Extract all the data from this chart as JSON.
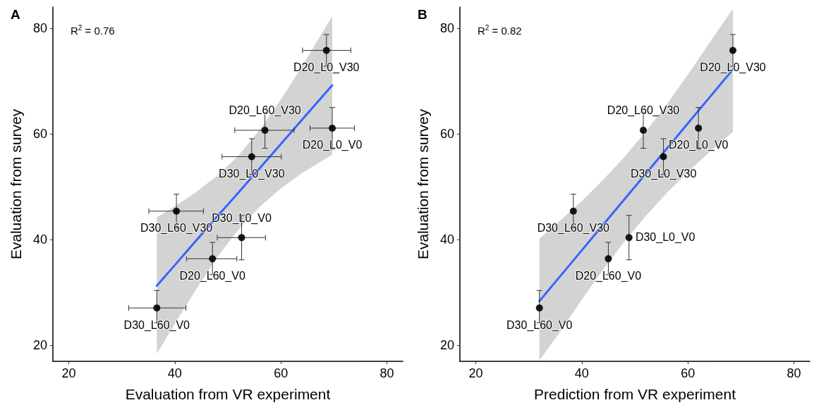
{
  "chart_data": [
    {
      "type": "scatter",
      "title": "A",
      "xlabel": "Evaluation from VR experiment",
      "ylabel": "Evaluation from survey",
      "xlim": [
        17,
        83
      ],
      "ylim": [
        17,
        84
      ],
      "xticks": [
        20,
        40,
        60,
        80
      ],
      "yticks": [
        20,
        40,
        60,
        80
      ],
      "grid": false,
      "series": [
        {
          "type": "line",
          "color": "#3366ff",
          "marker": "none",
          "line_style": "solid",
          "x": [
            36.6,
            40,
            44,
            48,
            52,
            56,
            60,
            64,
            69.7
          ],
          "values": [
            31.3,
            35.2,
            39.8,
            44.4,
            48.9,
            53.5,
            58.1,
            62.7,
            69.2
          ],
          "lower": [
            18.4,
            24.1,
            30.6,
            36.7,
            41.9,
            46.2,
            49.7,
            52.6,
            56.1
          ],
          "upper": [
            44.2,
            46.3,
            49.0,
            52.1,
            55.9,
            60.8,
            66.5,
            72.8,
            82.3
          ]
        },
        {
          "color": "#000000",
          "marker": "circle",
          "x": [
            68.6,
            69.7,
            57.0,
            54.5,
            40.3,
            52.6,
            47.1,
            36.6
          ],
          "values": [
            75.8,
            61.1,
            60.7,
            55.7,
            45.4,
            40.4,
            36.4,
            27.1
          ],
          "errors": [
            [
              72.8,
              78.8
            ],
            [
              57.1,
              65.0
            ],
            [
              57.3,
              64.1
            ],
            [
              52.3,
              59.1
            ],
            [
              42.2,
              48.6
            ],
            [
              36.2,
              44.6
            ],
            [
              33.4,
              39.5
            ],
            [
              24.3,
              30.4
            ]
          ],
          "xerrors": [
            [
              64.1,
              73.2
            ],
            [
              65.5,
              73.9
            ],
            [
              51.3,
              62.5
            ],
            [
              48.9,
              60.1
            ],
            [
              35.1,
              45.4
            ],
            [
              48.0,
              57.1
            ],
            [
              42.2,
              51.7
            ],
            [
              31.3,
              42.1
            ]
          ]
        }
      ],
      "annotations": [
        "R$^{2}$ = 0.76",
        {
          "text": "D20_L0_V30",
          "x": 68.6,
          "y": 75.8
        },
        {
          "text": "D20_L0_V0",
          "x": 69.7,
          "y": 61.1
        },
        {
          "text": "D20_L60_V30",
          "x": 57.0,
          "y": 60.7
        },
        {
          "text": "D30_L0_V30",
          "x": 54.5,
          "y": 55.7
        },
        {
          "text": "D30_L60_V30",
          "x": 40.3,
          "y": 45.4
        },
        {
          "text": "D30_L0_V0",
          "x": 52.6,
          "y": 40.4
        },
        {
          "text": "D20_L60_V0",
          "x": 47.1,
          "y": 36.4
        },
        {
          "text": "D30_L60_V0",
          "x": 36.6,
          "y": 27.1
        }
      ]
    },
    {
      "type": "scatter",
      "title": "B",
      "xlabel": "Prediction from VR experiment",
      "ylabel": "Evaluation from survey",
      "xlim": [
        17,
        83
      ],
      "ylim": [
        17,
        84
      ],
      "xticks": [
        20,
        40,
        60,
        80
      ],
      "yticks": [
        20,
        40,
        60,
        80
      ],
      "grid": false,
      "series": [
        {
          "type": "line",
          "color": "#3366ff",
          "marker": "none",
          "line_style": "solid",
          "x": [
            32,
            36,
            40,
            44,
            48,
            52,
            56,
            60,
            64,
            68.5
          ],
          "values": [
            28.4,
            33.2,
            38.0,
            42.8,
            47.6,
            52.4,
            57.2,
            62.0,
            66.8,
            72.2
          ],
          "lower": [
            17.2,
            22.7,
            28.7,
            34.3,
            39.6,
            44.4,
            48.8,
            52.8,
            56.5,
            60.4
          ],
          "upper": [
            40.2,
            43.7,
            47.3,
            51.3,
            55.6,
            60.4,
            65.6,
            71.2,
            77.1,
            83.7
          ]
        },
        {
          "color": "#000000",
          "marker": "circle",
          "x": [
            68.5,
            62.0,
            51.6,
            55.4,
            38.4,
            48.9,
            45.0,
            32.0
          ],
          "values": [
            75.8,
            61.1,
            60.7,
            55.7,
            45.4,
            40.4,
            36.4,
            27.1
          ],
          "errors": [
            [
              72.8,
              78.8
            ],
            [
              57.1,
              65.0
            ],
            [
              57.3,
              64.1
            ],
            [
              52.3,
              59.1
            ],
            [
              42.2,
              48.6
            ],
            [
              36.2,
              44.6
            ],
            [
              33.4,
              39.5
            ],
            [
              24.3,
              30.4
            ]
          ]
        }
      ],
      "annotations": [
        "R$^{2}$ = 0.82",
        {
          "text": "D20_L0_V30",
          "x": 68.5,
          "y": 75.8
        },
        {
          "text": "D20_L0_V0",
          "x": 62.0,
          "y": 61.1
        },
        {
          "text": "D20_L60_V30",
          "x": 51.6,
          "y": 60.7
        },
        {
          "text": "D30_L0_V30",
          "x": 55.4,
          "y": 55.7
        },
        {
          "text": "D30_L60_V30",
          "x": 38.4,
          "y": 45.4
        },
        {
          "text": "D30_L0_V0",
          "x": 48.9,
          "y": 40.4
        },
        {
          "text": "D20_L60_V0",
          "x": 45.0,
          "y": 36.4
        },
        {
          "text": "D30_L60_V0",
          "x": 32.0,
          "y": 27.1
        }
      ]
    }
  ]
}
